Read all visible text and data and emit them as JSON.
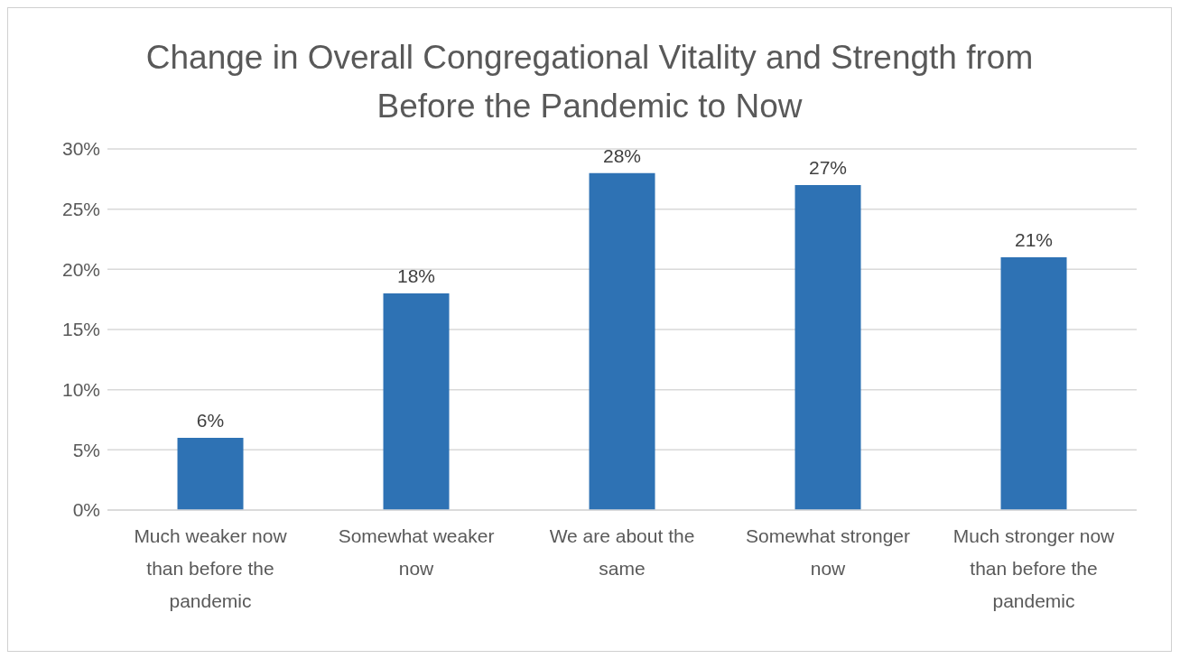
{
  "chart_data": {
    "type": "bar",
    "title": "Change in Overall Congregational Vitality and Strength from Before the Pandemic to Now",
    "categories": [
      "Much weaker now than before the pandemic",
      "Somewhat weaker now",
      "We are about the same",
      "Somewhat stronger now",
      "Much stronger now than before the pandemic"
    ],
    "values": [
      6,
      18,
      28,
      27,
      21
    ],
    "value_labels": [
      "6%",
      "18%",
      "28%",
      "27%",
      "21%"
    ],
    "color": "#2e72b4",
    "ylim": [
      0,
      30
    ],
    "yticks": [
      {
        "value": 0,
        "label": "0%"
      },
      {
        "value": 5,
        "label": "5%"
      },
      {
        "value": 10,
        "label": "10%"
      },
      {
        "value": 15,
        "label": "15%"
      },
      {
        "value": 20,
        "label": "20%"
      },
      {
        "value": 25,
        "label": "25%"
      },
      {
        "value": 30,
        "label": "30%"
      }
    ],
    "grid": "y"
  }
}
